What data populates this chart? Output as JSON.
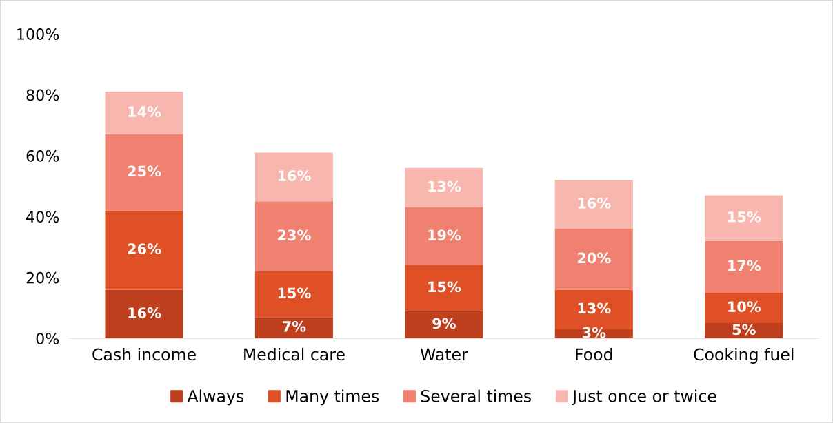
{
  "chart_data": {
    "type": "bar",
    "stacked": true,
    "categories": [
      "Cash income",
      "Medical care",
      "Water",
      "Food",
      "Cooking fuel"
    ],
    "series": [
      {
        "name": "Always",
        "color": "#be3f1e",
        "values": [
          16,
          7,
          9,
          3,
          5
        ],
        "value_labels": [
          "16%",
          "7%",
          "9%",
          "3%",
          "5%"
        ]
      },
      {
        "name": "Many times",
        "color": "#e05026",
        "values": [
          26,
          15,
          15,
          13,
          10
        ],
        "value_labels": [
          "26%",
          "15%",
          "15%",
          "13%",
          "10%"
        ]
      },
      {
        "name": "Several times",
        "color": "#f08070",
        "values": [
          25,
          23,
          19,
          20,
          17
        ],
        "value_labels": [
          "25%",
          "23%",
          "19%",
          "20%",
          "17%"
        ]
      },
      {
        "name": "Just once or twice",
        "color": "#f7b6ae",
        "values": [
          14,
          16,
          13,
          16,
          15
        ],
        "value_labels": [
          "14%",
          "16%",
          "13%",
          "16%",
          "15%"
        ]
      }
    ],
    "ylim": [
      0,
      100
    ],
    "yticks": [
      {
        "value": 0,
        "label": "0%"
      },
      {
        "value": 20,
        "label": "20%"
      },
      {
        "value": 40,
        "label": "40%"
      },
      {
        "value": 60,
        "label": "60%"
      },
      {
        "value": 80,
        "label": "80%"
      },
      {
        "value": 100,
        "label": "100%"
      }
    ],
    "grid": false,
    "legend": "bottom"
  }
}
